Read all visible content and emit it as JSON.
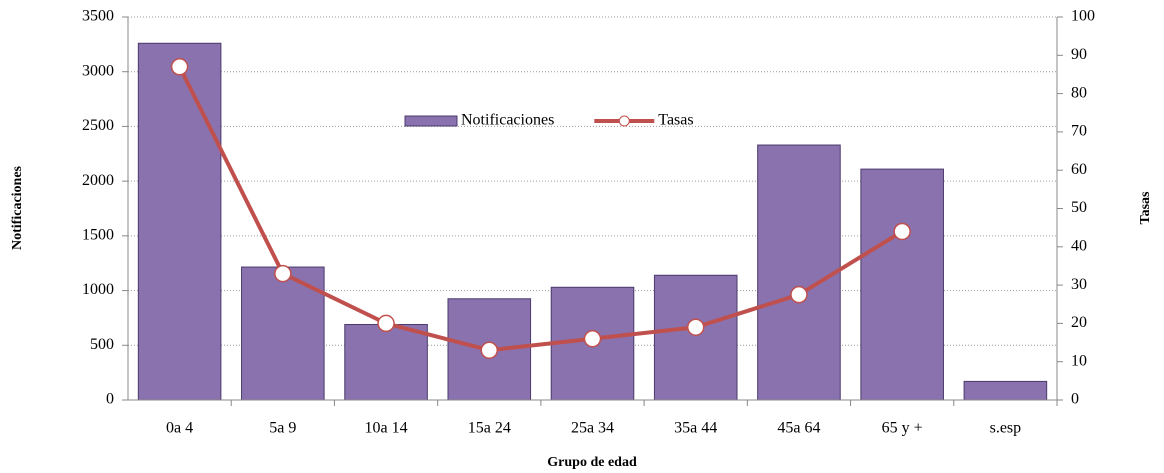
{
  "chart_data": {
    "type": "bar-line",
    "x_label": "Grupo de edad",
    "y_label": "Notificaciones",
    "y2_label": "Tasas",
    "categories": [
      "0a 4",
      "5a 9",
      "10a 14",
      "15a 24",
      "25a 34",
      "35a 44",
      "45a 64",
      "65 y +",
      "s.esp"
    ],
    "series": [
      {
        "name": "Notificaciones",
        "type": "bar",
        "color": "#8a72ae",
        "values": [
          3260,
          1215,
          690,
          925,
          1030,
          1140,
          2330,
          2110,
          170
        ]
      },
      {
        "name": "Tasas",
        "type": "line",
        "axis": "y2",
        "color": "#c0504d",
        "values": [
          87,
          33,
          20,
          13,
          16,
          19,
          27.5,
          44,
          null
        ]
      }
    ],
    "ylim": [
      0,
      3500
    ],
    "yticks": [
      0,
      500,
      1000,
      1500,
      2000,
      2500,
      3000,
      3500
    ],
    "y2lim": [
      0,
      100
    ],
    "y2ticks": [
      0,
      10,
      20,
      30,
      40,
      50,
      60,
      70,
      80,
      90,
      100
    ],
    "grid": true,
    "legend": "top"
  }
}
